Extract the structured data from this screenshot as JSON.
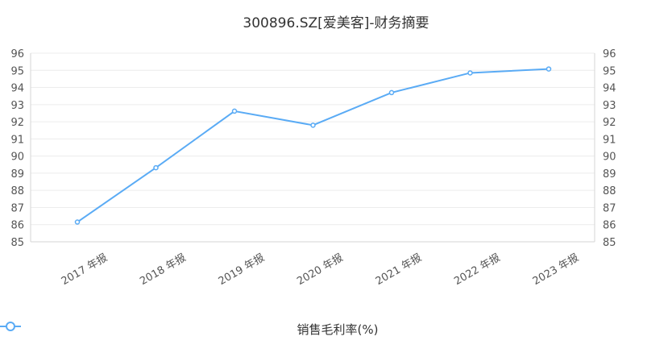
{
  "chart_data": {
    "type": "line",
    "title": "300896.SZ[爱美客]-财务摘要",
    "categories": [
      "2017 年报",
      "2018 年报",
      "2019 年报",
      "2020 年报",
      "2021 年报",
      "2022 年报",
      "2023 年报"
    ],
    "series": [
      {
        "name": "销售毛利率(%)",
        "values": [
          86.15,
          89.32,
          92.62,
          91.8,
          93.7,
          94.85,
          95.08
        ],
        "color": "#5aabf5"
      }
    ],
    "ylim": [
      85,
      96
    ],
    "yticks": [
      85,
      86,
      87,
      88,
      89,
      90,
      91,
      92,
      93,
      94,
      95,
      96
    ],
    "y_axis_both_sides": true,
    "grid": true,
    "legend_position": "bottom-center"
  }
}
